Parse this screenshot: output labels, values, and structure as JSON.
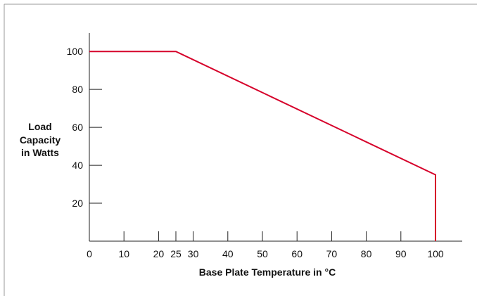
{
  "chart_data": {
    "type": "line",
    "title": "",
    "xlabel": "Base Plate Temperature in °C",
    "ylabel_lines": [
      "Load",
      "Capacity",
      "in Watts"
    ],
    "xlim": [
      0,
      108
    ],
    "ylim": [
      0,
      110
    ],
    "x_ticks": [
      0,
      10,
      20,
      25,
      30,
      40,
      50,
      60,
      70,
      80,
      90,
      100
    ],
    "y_ticks": [
      20,
      40,
      60,
      80,
      100
    ],
    "grid": false,
    "legend": "none",
    "series": [
      {
        "color": "#d6002a",
        "points": [
          {
            "x": 0,
            "y": 100
          },
          {
            "x": 25,
            "y": 100
          },
          {
            "x": 100,
            "y": 35
          },
          {
            "x": 100,
            "y": 0
          }
        ]
      }
    ]
  }
}
